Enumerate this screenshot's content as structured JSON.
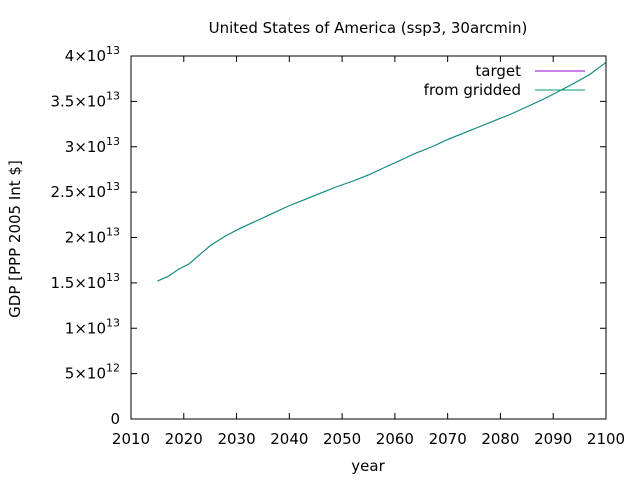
{
  "chart_data": {
    "type": "line",
    "title": "United States of America (ssp3, 30arcmin)",
    "xlabel": "year",
    "ylabel": "GDP [PPP 2005 Int $]",
    "xlim": [
      2010,
      2100
    ],
    "ylim": [
      0,
      40000000000000.0
    ],
    "xticks": [
      2010,
      2020,
      2030,
      2040,
      2050,
      2060,
      2070,
      2080,
      2090,
      2100
    ],
    "yticks": [
      {
        "value": 0,
        "mant": "0",
        "exp": ""
      },
      {
        "value": 5000000000000.0,
        "mant": "5×10",
        "exp": "12"
      },
      {
        "value": 10000000000000.0,
        "mant": "1×10",
        "exp": "13"
      },
      {
        "value": 15000000000000.0,
        "mant": "1.5×10",
        "exp": "13"
      },
      {
        "value": 20000000000000.0,
        "mant": "2×10",
        "exp": "13"
      },
      {
        "value": 25000000000000.0,
        "mant": "2.5×10",
        "exp": "13"
      },
      {
        "value": 30000000000000.0,
        "mant": "3×10",
        "exp": "13"
      },
      {
        "value": 35000000000000.0,
        "mant": "3.5×10",
        "exp": "13"
      },
      {
        "value": 40000000000000.0,
        "mant": "4×10",
        "exp": "13"
      }
    ],
    "legend_position": "top-right",
    "grid": false,
    "series": [
      {
        "name": "target",
        "color": "#9400d3",
        "x": [
          2015,
          2017,
          2019,
          2021,
          2023,
          2025,
          2028,
          2031,
          2034,
          2037,
          2040,
          2043,
          2046,
          2049,
          2052,
          2055,
          2058,
          2061,
          2064,
          2067,
          2070,
          2073,
          2076,
          2079,
          2082,
          2085,
          2088,
          2091,
          2094,
          2097,
          2100
        ],
        "values": [
          15200000000000.0,
          15700000000000.0,
          16500000000000.0,
          17100000000000.0,
          18100000000000.0,
          19100000000000.0,
          20200000000000.0,
          21100000000000.0,
          21900000000000.0,
          22700000000000.0,
          23500000000000.0,
          24200000000000.0,
          24900000000000.0,
          25600000000000.0,
          26200000000000.0,
          26900000000000.0,
          27700000000000.0,
          28500000000000.0,
          29300000000000.0,
          30000000000000.0,
          30800000000000.0,
          31500000000000.0,
          32200000000000.0,
          32900000000000.0,
          33600000000000.0,
          34400000000000.0,
          35200000000000.0,
          36100000000000.0,
          37000000000000.0,
          38000000000000.0,
          39300000000000.0
        ]
      },
      {
        "name": "from gridded",
        "color": "#009e73",
        "x": [
          2015,
          2017,
          2019,
          2021,
          2023,
          2025,
          2028,
          2031,
          2034,
          2037,
          2040,
          2043,
          2046,
          2049,
          2052,
          2055,
          2058,
          2061,
          2064,
          2067,
          2070,
          2073,
          2076,
          2079,
          2082,
          2085,
          2088,
          2091,
          2094,
          2097,
          2100
        ],
        "values": [
          15200000000000.0,
          15700000000000.0,
          16500000000000.0,
          17100000000000.0,
          18100000000000.0,
          19100000000000.0,
          20200000000000.0,
          21100000000000.0,
          21900000000000.0,
          22700000000000.0,
          23500000000000.0,
          24200000000000.0,
          24900000000000.0,
          25600000000000.0,
          26200000000000.0,
          26900000000000.0,
          27700000000000.0,
          28500000000000.0,
          29300000000000.0,
          30000000000000.0,
          30800000000000.0,
          31500000000000.0,
          32200000000000.0,
          32900000000000.0,
          33600000000000.0,
          34400000000000.0,
          35200000000000.0,
          36100000000000.0,
          37000000000000.0,
          38000000000000.0,
          39300000000000.0
        ]
      }
    ]
  }
}
